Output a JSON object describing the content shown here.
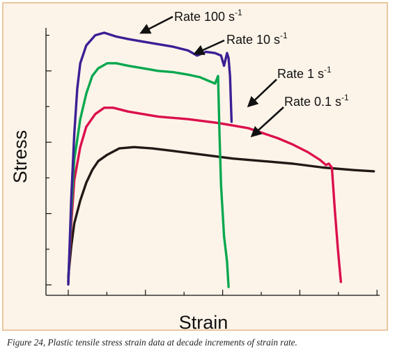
{
  "caption": "Figure 24, Plastic tensile stress strain data at decade increments of strain rate.",
  "chart_data": {
    "type": "line",
    "xlabel": "Strain",
    "ylabel": "Stress",
    "x_tick_labels": false,
    "y_tick_labels": false,
    "xlim": [
      0,
      1
    ],
    "ylim": [
      0,
      1
    ],
    "grid": false,
    "legend": "none (series labeled with arrow callouts)",
    "series": [
      {
        "name": "Rate 100 s-1",
        "label_text": "Rate 100 s",
        "label_sup": "-1",
        "color": "#3b1f95",
        "points": [
          [
            0.0,
            0.01
          ],
          [
            0.01,
            0.35
          ],
          [
            0.02,
            0.6
          ],
          [
            0.03,
            0.78
          ],
          [
            0.04,
            0.88
          ],
          [
            0.06,
            0.95
          ],
          [
            0.09,
            0.99
          ],
          [
            0.12,
            1.0
          ],
          [
            0.16,
            0.985
          ],
          [
            0.2,
            0.975
          ],
          [
            0.25,
            0.965
          ],
          [
            0.3,
            0.955
          ],
          [
            0.35,
            0.945
          ],
          [
            0.4,
            0.93
          ],
          [
            0.43,
            0.91
          ],
          [
            0.46,
            0.925
          ],
          [
            0.49,
            0.92
          ],
          [
            0.51,
            0.91
          ],
          [
            0.52,
            0.87
          ],
          [
            0.53,
            0.92
          ],
          [
            0.535,
            0.9
          ],
          [
            0.54,
            0.83
          ],
          [
            0.545,
            0.65
          ]
        ]
      },
      {
        "name": "Rate 10 s-1",
        "label_text": "Rate 10 s",
        "label_sup": "-1",
        "color": "#08a84f",
        "points": [
          [
            0.0,
            0.02
          ],
          [
            0.01,
            0.3
          ],
          [
            0.02,
            0.5
          ],
          [
            0.04,
            0.66
          ],
          [
            0.06,
            0.76
          ],
          [
            0.08,
            0.83
          ],
          [
            0.1,
            0.86
          ],
          [
            0.13,
            0.88
          ],
          [
            0.16,
            0.88
          ],
          [
            0.2,
            0.87
          ],
          [
            0.25,
            0.86
          ],
          [
            0.3,
            0.85
          ],
          [
            0.35,
            0.845
          ],
          [
            0.4,
            0.835
          ],
          [
            0.44,
            0.825
          ],
          [
            0.49,
            0.8
          ],
          [
            0.5,
            0.83
          ],
          [
            0.505,
            0.6
          ],
          [
            0.51,
            0.4
          ],
          [
            0.52,
            0.2
          ],
          [
            0.53,
            0.1
          ],
          [
            0.535,
            0.0
          ]
        ]
      },
      {
        "name": "Rate 1 s-1",
        "label_text": "Rate 1 s",
        "label_sup": "-1",
        "color": "#db0f4c",
        "points": [
          [
            0.0,
            0.02
          ],
          [
            0.01,
            0.25
          ],
          [
            0.02,
            0.42
          ],
          [
            0.04,
            0.55
          ],
          [
            0.06,
            0.63
          ],
          [
            0.09,
            0.68
          ],
          [
            0.12,
            0.705
          ],
          [
            0.15,
            0.705
          ],
          [
            0.2,
            0.69
          ],
          [
            0.3,
            0.67
          ],
          [
            0.4,
            0.66
          ],
          [
            0.5,
            0.645
          ],
          [
            0.55,
            0.635
          ],
          [
            0.6,
            0.625
          ],
          [
            0.7,
            0.585
          ],
          [
            0.75,
            0.56
          ],
          [
            0.8,
            0.53
          ],
          [
            0.84,
            0.5
          ],
          [
            0.86,
            0.48
          ],
          [
            0.87,
            0.485
          ],
          [
            0.88,
            0.47
          ],
          [
            0.89,
            0.3
          ],
          [
            0.9,
            0.15
          ],
          [
            0.91,
            0.02
          ]
        ]
      },
      {
        "name": "Rate 0.1 s-1",
        "label_text": "Rate 0.1 s",
        "label_sup": "-1",
        "color": "#231815",
        "points": [
          [
            0.0,
            0.04
          ],
          [
            0.01,
            0.16
          ],
          [
            0.02,
            0.25
          ],
          [
            0.04,
            0.34
          ],
          [
            0.06,
            0.41
          ],
          [
            0.08,
            0.46
          ],
          [
            0.1,
            0.495
          ],
          [
            0.13,
            0.52
          ],
          [
            0.17,
            0.545
          ],
          [
            0.22,
            0.55
          ],
          [
            0.28,
            0.545
          ],
          [
            0.35,
            0.535
          ],
          [
            0.45,
            0.52
          ],
          [
            0.55,
            0.505
          ],
          [
            0.65,
            0.495
          ],
          [
            0.75,
            0.485
          ],
          [
            0.85,
            0.47
          ],
          [
            0.95,
            0.46
          ],
          [
            1.02,
            0.455
          ]
        ]
      }
    ]
  }
}
